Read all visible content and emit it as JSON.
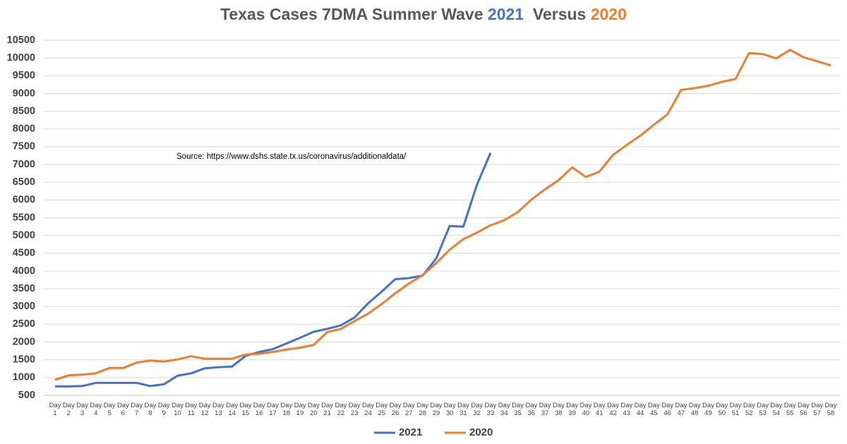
{
  "chart_data": {
    "type": "line",
    "title": [
      "Texas Cases 7DMA  Summer Wave  ",
      "2021",
      "  Versus ",
      "2020"
    ],
    "annotation": "Source:  https://www.dshs.state.tx.us/coronavirus/additionaldata/",
    "categories": [
      "Day 1",
      "Day 2",
      "Day 3",
      "Day 4",
      "Day 5",
      "Day 6",
      "Day 7",
      "Day 8",
      "Day 9",
      "Day 10",
      "Day 11",
      "Day 12",
      "Day 13",
      "Day 14",
      "Day 15",
      "Day 16",
      "Day 17",
      "Day 18",
      "Day 19",
      "Day 20",
      "Day 21",
      "Day 22",
      "Day 23",
      "Day 24",
      "Day 25",
      "Day 26",
      "Day 27",
      "Day 28",
      "Day 29",
      "Day 30",
      "Day 31",
      "Day 32",
      "Day 33",
      "Day 34",
      "Day 35",
      "Day 36",
      "Day 37",
      "Day 38",
      "Day 39",
      "Day 40",
      "Day 41",
      "Day 42",
      "Day 43",
      "Day 44",
      "Day 45",
      "Day 46",
      "Day 47",
      "Day 48",
      "Day 49",
      "Day 50",
      "Day 51",
      "Day 52",
      "Day 53",
      "Day 54",
      "Day 55",
      "Day 56",
      "Day 57",
      "Day 58"
    ],
    "series": [
      {
        "name": "2021",
        "color": "#4472c4",
        "values": [
          750,
          750,
          760,
          850,
          850,
          850,
          850,
          760,
          810,
          1050,
          1120,
          1260,
          1290,
          1310,
          1610,
          1720,
          1800,
          1960,
          2120,
          2290,
          2370,
          2470,
          2690,
          3090,
          3420,
          3770,
          3800,
          3870,
          4350,
          5270,
          5250,
          6430,
          7330,
          null,
          null,
          null,
          null,
          null,
          null,
          null,
          null,
          null,
          null,
          null,
          null,
          null,
          null,
          null,
          null,
          null,
          null,
          null,
          null,
          null,
          null,
          null,
          null,
          null
        ]
      },
      {
        "name": "2020",
        "color": "#ed7d31",
        "values": [
          940,
          1060,
          1080,
          1120,
          1270,
          1270,
          1420,
          1480,
          1450,
          1510,
          1600,
          1530,
          1530,
          1530,
          1650,
          1670,
          1720,
          1790,
          1840,
          1920,
          2280,
          2370,
          2590,
          2800,
          3070,
          3370,
          3650,
          3880,
          4220,
          4600,
          4900,
          5080,
          5290,
          5430,
          5660,
          6010,
          6300,
          6560,
          6920,
          6650,
          6800,
          7270,
          7550,
          7810,
          8120,
          8410,
          9100,
          9150,
          9220,
          9330,
          9410,
          10140,
          10110,
          9990,
          10230,
          10020,
          9910,
          9790
        ]
      }
    ],
    "ylim": [
      500,
      10500
    ],
    "yticks": [
      500,
      1000,
      1500,
      2000,
      2500,
      3000,
      3500,
      4000,
      4500,
      5000,
      5500,
      6000,
      6500,
      7000,
      7500,
      8000,
      8500,
      9000,
      9500,
      10000,
      10500
    ],
    "grid": true,
    "legend": "bottom"
  }
}
